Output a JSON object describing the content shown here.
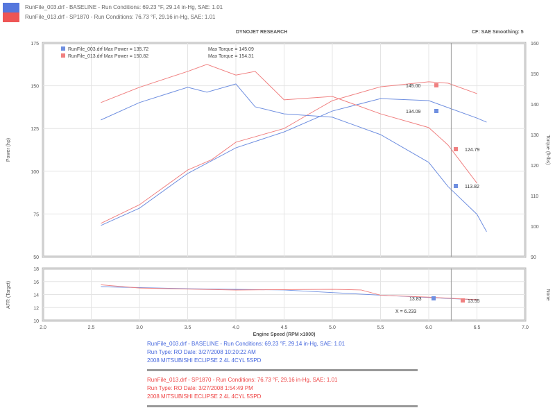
{
  "header": {
    "run1": "RunFile_003.drf - BASELINE  -  Run Conditions: 69.23 °F, 29.14 in-Hg, SAE: 1.01",
    "run2": "RunFile_013.drf - SP1870  -  Run Conditions: 76.73 °F, 29.16 in-Hg, SAE: 1.01",
    "title": "DYNOJET RESEARCH",
    "settings": "CF: SAE  Smoothing: 5"
  },
  "colors": {
    "baseline": "#6f8fe0",
    "mod": "#f08080"
  },
  "chart_data": [
    {
      "type": "line",
      "xlim": [
        2.0,
        7.0
      ],
      "ylim": [
        50,
        175
      ],
      "y2lim": [
        90,
        160
      ],
      "xticks": [
        "2.0",
        "2.5",
        "3.0",
        "3.5",
        "4.0",
        "4.5",
        "5.0",
        "5.5",
        "6.0",
        "6.5",
        "7.0"
      ],
      "yticks": [
        "175",
        "150",
        "125",
        "100",
        "75",
        "50"
      ],
      "y2ticks": [
        "160",
        "150",
        "140",
        "130",
        "120",
        "110",
        "100",
        "90"
      ],
      "ylabel": "Power (hp)",
      "y2label": "Torque (ft-lbs)",
      "grid": true,
      "legend": [
        {
          "text": "RunFile_003.drf Max Power = 135.72",
          "torque": "Max Torque = 145.09"
        },
        {
          "text": "RunFile_013.drf Max Power = 150.82",
          "torque": "Max Torque = 154.31"
        }
      ],
      "series": [
        {
          "kind": "power",
          "run": 0,
          "x": [
            2.6,
            3.0,
            3.5,
            4.0,
            4.5,
            5.0,
            5.5,
            6.0,
            6.2,
            6.5,
            6.6
          ],
          "y": [
            68.3,
            78.4,
            98.7,
            113.7,
            123,
            135.2,
            142.5,
            141.3,
            137.2,
            131.1,
            128.7
          ]
        },
        {
          "kind": "power",
          "run": 1,
          "x": [
            2.6,
            3.0,
            3.5,
            3.75,
            4.0,
            4.25,
            4.5,
            4.75,
            5.0,
            5.5,
            6.0,
            6.2,
            6.5
          ],
          "y": [
            69.5,
            80.4,
            100.7,
            106.8,
            117,
            121,
            125,
            133.2,
            141.3,
            149.4,
            152.3,
            151.5,
            145.4
          ]
        },
        {
          "kind": "torque",
          "run": 0,
          "x": [
            2.6,
            3.0,
            3.5,
            3.7,
            4.0,
            4.2,
            4.5,
            5.0,
            5.5,
            6.0,
            6.2,
            6.5,
            6.6
          ],
          "y": [
            134.8,
            140.5,
            145.5,
            143.9,
            146.6,
            139.1,
            136.8,
            135.7,
            130,
            120.9,
            113,
            103.9,
            98.2
          ]
        },
        {
          "kind": "torque",
          "run": 1,
          "x": [
            2.6,
            3.0,
            3.5,
            3.7,
            4.0,
            4.2,
            4.5,
            5.0,
            5.5,
            6.0,
            6.2,
            6.5
          ],
          "y": [
            140.5,
            145.5,
            150.7,
            153,
            149.5,
            150.7,
            141.4,
            142.5,
            136.8,
            132.3,
            126.6,
            114.1
          ]
        }
      ],
      "markers": [
        "145.00",
        "134.09",
        "124.79",
        "113.82"
      ],
      "cursor_x": 6.233
    },
    {
      "type": "line",
      "xlim": [
        2.0,
        7.0
      ],
      "ylim": [
        10,
        18
      ],
      "yticks": [
        "18",
        "16",
        "14",
        "12",
        "10"
      ],
      "ylabel": "AFR (Target)",
      "y2label": "None",
      "xlabel": "Engine Speed (RPM x1000)",
      "series": [
        {
          "run": 0,
          "x": [
            2.6,
            3.5,
            4.5,
            5.0,
            5.5,
            6.2,
            6.5
          ],
          "y": [
            15.2,
            14.9,
            14.7,
            14.3,
            13.9,
            13.4,
            13.2
          ]
        },
        {
          "run": 1,
          "x": [
            2.6,
            3.0,
            4.0,
            5.0,
            5.3,
            5.5,
            6.0,
            6.5
          ],
          "y": [
            15.5,
            15.0,
            14.7,
            14.8,
            14.7,
            13.9,
            13.6,
            13.2
          ]
        }
      ],
      "markers": [
        "13.83",
        "13.55"
      ],
      "cursor_label": "X = 6.233"
    }
  ],
  "info": {
    "b1": "RunFile_003.drf - BASELINE  -  Run Conditions: 69.23 °F, 29.14 in-Hg, SAE: 1.01",
    "b2": "Run Type: RO  Date: 3/27/2008 10:20:22 AM",
    "b3": "2008 MITSUBISHI ECLIPSE 2.4L 4CYL 5SPD",
    "r1": "RunFile_013.drf - SP1870  -  Run Conditions: 76.73 °F, 29.16 in-Hg, SAE: 1.01",
    "r2": "Run Type: RO  Date: 3/27/2008 1:54:49 PM",
    "r3": "2008 MITSUBISHI ECLIPSE 2.4L 4CYL 5SPD"
  }
}
